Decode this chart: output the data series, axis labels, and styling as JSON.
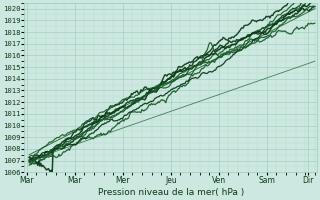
{
  "title": "Pression niveau de la mer( hPa )",
  "background_color": "#cce8e0",
  "grid_color_major": "#99ccbb",
  "grid_color_minor": "#bbddcc",
  "line_color": "#1a5c2a",
  "line_color2": "#0d3a18",
  "figsize": [
    3.2,
    2.0
  ],
  "dpi": 100,
  "ylim": [
    1006,
    1020.5
  ],
  "yticks": [
    1006,
    1007,
    1008,
    1009,
    1010,
    1011,
    1012,
    1013,
    1014,
    1015,
    1016,
    1017,
    1018,
    1019,
    1020
  ],
  "xtick_positions": [
    0,
    1,
    2,
    3,
    4,
    5,
    5.85
  ],
  "xtick_labels": [
    "Mar",
    "Mar",
    "Mer",
    "Jeu",
    "Ven",
    "Sam",
    "Dir"
  ],
  "xlim": [
    -0.05,
    6.05
  ]
}
